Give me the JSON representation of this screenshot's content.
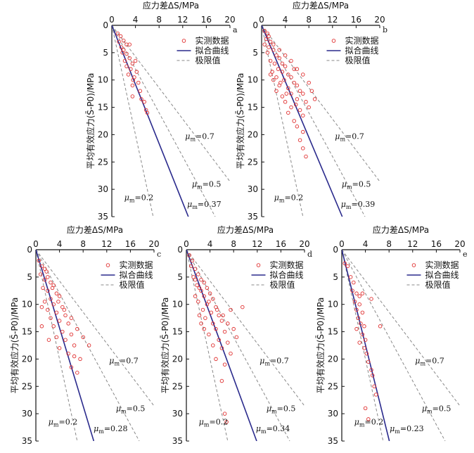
{
  "chart_data": [
    {
      "panel": "a",
      "type": "scatter",
      "title": "应力差ΔS/MPa",
      "xlabel": "应力差ΔS/MPa",
      "ylabel": "平均有效应力(S̄-P0)/MPa",
      "xlim": [
        0,
        20
      ],
      "ylim": [
        0,
        35
      ],
      "y_inverted": true,
      "x_axis_position": "top",
      "xticks": [
        0,
        4,
        8,
        12,
        16,
        20
      ],
      "yticks": [
        0,
        5,
        10,
        15,
        20,
        25,
        30,
        35
      ],
      "legend": {
        "position": "top-right",
        "entries": [
          "实测数据",
          "拟合曲线",
          "极限值"
        ]
      },
      "points_series_name": "实测数据",
      "points": [
        [
          1.0,
          1.5
        ],
        [
          1.5,
          2.0
        ],
        [
          2.0,
          2.8
        ],
        [
          2.5,
          3.5
        ],
        [
          3.0,
          3.5
        ],
        [
          1.2,
          3.0
        ],
        [
          2.0,
          4.5
        ],
        [
          1.8,
          5.0
        ],
        [
          2.5,
          5.2
        ],
        [
          3.0,
          6.0
        ],
        [
          3.5,
          7.0
        ],
        [
          4.0,
          6.5
        ],
        [
          2.5,
          7.5
        ],
        [
          3.2,
          8.0
        ],
        [
          4.2,
          8.5
        ],
        [
          3.8,
          9.5
        ],
        [
          2.8,
          9.0
        ],
        [
          4.5,
          10.5
        ],
        [
          3.5,
          11.0
        ],
        [
          4.8,
          12.0
        ],
        [
          5.0,
          13.5
        ],
        [
          3.5,
          13.0
        ],
        [
          5.5,
          14.0
        ],
        [
          5.8,
          15.5
        ],
        [
          6.0,
          16.0
        ],
        [
          2.2,
          6.5
        ],
        [
          1.6,
          4.0
        ],
        [
          3.6,
          10.0
        ]
      ],
      "fit": {
        "label": "μm=0.37",
        "slope": 0.37
      },
      "limits": [
        {
          "label": "μm=0.2",
          "slope": 0.2
        },
        {
          "label": "μm=0.5",
          "slope": 0.5
        },
        {
          "label": "μm=0.7",
          "slope": 0.7
        }
      ]
    },
    {
      "panel": "b",
      "type": "scatter",
      "title": "应力差ΔS/MPa",
      "xlabel": "应力差ΔS/MPa",
      "ylabel": "平均有效应力(S̄-P0)/MPa",
      "xlim": [
        0,
        20
      ],
      "ylim": [
        0,
        35
      ],
      "y_inverted": true,
      "x_axis_position": "top",
      "xticks": [
        0,
        4,
        8,
        12,
        16,
        20
      ],
      "yticks": [
        0,
        5,
        10,
        15,
        20,
        25,
        30,
        35
      ],
      "legend": {
        "position": "top-right",
        "entries": [
          "实测数据",
          "拟合曲线",
          "极限值"
        ]
      },
      "points_series_name": "实测数据",
      "points": [
        [
          0.5,
          1.0
        ],
        [
          1.0,
          1.5
        ],
        [
          0.8,
          2.5
        ],
        [
          1.5,
          3.0
        ],
        [
          0.5,
          3.5
        ],
        [
          1.2,
          4.0
        ],
        [
          2.0,
          4.5
        ],
        [
          1.0,
          5.0
        ],
        [
          2.5,
          5.5
        ],
        [
          3.0,
          6.0
        ],
        [
          1.5,
          6.5
        ],
        [
          2.2,
          7.0
        ],
        [
          3.5,
          7.0
        ],
        [
          4.0,
          7.5
        ],
        [
          2.8,
          8.0
        ],
        [
          1.8,
          8.5
        ],
        [
          3.5,
          8.5
        ],
        [
          4.5,
          9.0
        ],
        [
          5.0,
          9.5
        ],
        [
          2.5,
          9.5
        ],
        [
          3.8,
          10.0
        ],
        [
          5.5,
          10.5
        ],
        [
          6.0,
          11.0
        ],
        [
          3.0,
          11.0
        ],
        [
          4.5,
          11.5
        ],
        [
          6.5,
          12.0
        ],
        [
          2.5,
          12.0
        ],
        [
          5.0,
          12.5
        ],
        [
          7.0,
          12.5
        ],
        [
          3.5,
          13.0
        ],
        [
          6.0,
          13.5
        ],
        [
          4.0,
          14.0
        ],
        [
          7.5,
          14.0
        ],
        [
          5.0,
          15.0
        ],
        [
          6.5,
          15.5
        ],
        [
          4.5,
          16.0
        ],
        [
          7.0,
          16.5
        ],
        [
          5.5,
          17.5
        ],
        [
          6.0,
          18.5
        ],
        [
          7.0,
          19.5
        ],
        [
          6.5,
          21.0
        ],
        [
          7.0,
          22.5
        ],
        [
          7.5,
          24.0
        ],
        [
          1.2,
          2.0
        ],
        [
          2.0,
          3.5
        ],
        [
          3.0,
          4.5
        ],
        [
          4.0,
          5.5
        ],
        [
          5.0,
          6.5
        ],
        [
          6.0,
          8.0
        ],
        [
          7.0,
          9.0
        ],
        [
          8.0,
          10.5
        ],
        [
          8.5,
          12.0
        ],
        [
          9.0,
          13.5
        ],
        [
          5.5,
          8.0
        ],
        [
          4.2,
          12.5
        ],
        [
          3.2,
          10.5
        ],
        [
          2.0,
          10.0
        ],
        [
          1.5,
          9.0
        ],
        [
          5.8,
          14.5
        ],
        [
          8.0,
          15.0
        ]
      ],
      "fit": {
        "label": "μm=0.39",
        "slope": 0.39
      },
      "limits": [
        {
          "label": "μm=0.2",
          "slope": 0.2
        },
        {
          "label": "μm=0.5",
          "slope": 0.5
        },
        {
          "label": "μm=0.7",
          "slope": 0.7
        }
      ]
    },
    {
      "panel": "c",
      "type": "scatter",
      "title": "应力差ΔS/MPa",
      "xlabel": "应力差ΔS/MPa",
      "ylabel": "平均有效应力(S̄-P0)/MPa",
      "xlim": [
        0,
        20
      ],
      "ylim": [
        0,
        35
      ],
      "y_inverted": true,
      "x_axis_position": "top",
      "xticks": [
        0,
        4,
        8,
        12,
        16,
        20
      ],
      "yticks": [
        0,
        5,
        10,
        15,
        20,
        25,
        30,
        35
      ],
      "legend": {
        "position": "top-right",
        "entries": [
          "实测数据",
          "拟合曲线",
          "极限值"
        ]
      },
      "points_series_name": "实测数据",
      "points": [
        [
          0.5,
          2.0
        ],
        [
          1.0,
          3.0
        ],
        [
          1.5,
          3.5
        ],
        [
          0.8,
          4.5
        ],
        [
          2.0,
          5.0
        ],
        [
          1.5,
          5.5
        ],
        [
          2.5,
          6.0
        ],
        [
          3.0,
          6.5
        ],
        [
          1.2,
          7.0
        ],
        [
          2.0,
          7.5
        ],
        [
          3.5,
          8.0
        ],
        [
          4.0,
          8.5
        ],
        [
          2.5,
          9.0
        ],
        [
          1.5,
          9.5
        ],
        [
          3.0,
          10.0
        ],
        [
          4.5,
          10.5
        ],
        [
          2.0,
          11.0
        ],
        [
          3.5,
          11.5
        ],
        [
          5.0,
          12.0
        ],
        [
          2.5,
          12.5
        ],
        [
          4.0,
          13.0
        ],
        [
          5.5,
          13.5
        ],
        [
          3.0,
          14.0
        ],
        [
          1.0,
          14.0
        ],
        [
          4.5,
          15.0
        ],
        [
          6.0,
          15.5
        ],
        [
          3.5,
          16.0
        ],
        [
          5.0,
          16.5
        ],
        [
          6.5,
          17.5
        ],
        [
          4.0,
          18.0
        ],
        [
          5.5,
          19.0
        ],
        [
          7.5,
          20.0
        ],
        [
          6.0,
          21.5
        ],
        [
          7.0,
          22.5
        ],
        [
          1.8,
          4.0
        ],
        [
          2.8,
          7.0
        ],
        [
          3.8,
          9.5
        ],
        [
          4.8,
          11.0
        ],
        [
          6.0,
          12.5
        ],
        [
          7.0,
          14.5
        ],
        [
          8.0,
          16.0
        ],
        [
          9.0,
          17.5
        ],
        [
          1.0,
          10.5
        ],
        [
          2.2,
          16.5
        ],
        [
          6.5,
          19.5
        ]
      ],
      "fit": {
        "label": "μm=0.28",
        "slope": 0.28
      },
      "limits": [
        {
          "label": "μm=0.2",
          "slope": 0.2
        },
        {
          "label": "μm=0.5",
          "slope": 0.5
        },
        {
          "label": "μm=0.7",
          "slope": 0.7
        }
      ]
    },
    {
      "panel": "d",
      "type": "scatter",
      "title": "应力差ΔS/MPa",
      "xlabel": "应力差ΔS/MPa",
      "ylabel": "平均有效应力(S̄-P0)/MPa",
      "xlim": [
        0,
        20
      ],
      "ylim": [
        0,
        35
      ],
      "y_inverted": true,
      "x_axis_position": "top",
      "xticks": [
        0,
        4,
        8,
        12,
        16,
        20
      ],
      "yticks": [
        0,
        5,
        10,
        15,
        20,
        25,
        30,
        35
      ],
      "legend": {
        "position": "top-right",
        "entries": [
          "实测数据",
          "拟合曲线",
          "极限值"
        ]
      },
      "points_series_name": "实测数据",
      "points": [
        [
          0.5,
          1.0
        ],
        [
          1.0,
          2.0
        ],
        [
          0.8,
          3.0
        ],
        [
          1.5,
          3.5
        ],
        [
          2.0,
          4.5
        ],
        [
          1.2,
          5.0
        ],
        [
          2.5,
          5.5
        ],
        [
          3.0,
          6.0
        ],
        [
          1.8,
          6.5
        ],
        [
          3.5,
          7.0
        ],
        [
          2.5,
          7.5
        ],
        [
          4.0,
          8.0
        ],
        [
          3.0,
          8.5
        ],
        [
          1.5,
          8.5
        ],
        [
          4.5,
          9.0
        ],
        [
          2.0,
          9.5
        ],
        [
          3.5,
          10.0
        ],
        [
          5.0,
          10.5
        ],
        [
          2.8,
          11.0
        ],
        [
          4.2,
          11.5
        ],
        [
          5.5,
          12.0
        ],
        [
          3.2,
          12.5
        ],
        [
          6.0,
          13.0
        ],
        [
          4.5,
          13.5
        ],
        [
          2.5,
          13.5
        ],
        [
          5.0,
          14.5
        ],
        [
          6.5,
          15.0
        ],
        [
          3.8,
          15.5
        ],
        [
          5.5,
          16.5
        ],
        [
          7.0,
          17.0
        ],
        [
          4.5,
          17.5
        ],
        [
          6.0,
          18.0
        ],
        [
          7.5,
          19.0
        ],
        [
          5.0,
          20.0
        ],
        [
          6.5,
          21.0
        ],
        [
          6.0,
          24.0
        ],
        [
          6.5,
          30.0
        ],
        [
          6.8,
          31.5
        ],
        [
          1.5,
          5.5
        ],
        [
          2.2,
          7.0
        ],
        [
          3.8,
          9.5
        ],
        [
          5.2,
          11.0
        ],
        [
          6.2,
          12.0
        ],
        [
          7.0,
          13.5
        ],
        [
          7.5,
          11.0
        ],
        [
          8.0,
          14.5
        ],
        [
          8.5,
          16.0
        ],
        [
          9.5,
          10.5
        ],
        [
          2.2,
          12.0
        ],
        [
          3.0,
          14.5
        ]
      ],
      "fit": {
        "label": "μm=0.34",
        "slope": 0.34
      },
      "limits": [
        {
          "label": "μm=0.2",
          "slope": 0.2
        },
        {
          "label": "μm=0.5",
          "slope": 0.5
        },
        {
          "label": "μm=0.7",
          "slope": 0.7
        }
      ]
    },
    {
      "panel": "e",
      "type": "scatter",
      "title": "应力差ΔS/MPa",
      "xlabel": "应力差ΔS/MPa",
      "ylabel": "平均有效应力(S̄-P0)/MPa",
      "xlim": [
        0,
        20
      ],
      "ylim": [
        0,
        35
      ],
      "y_inverted": true,
      "x_axis_position": "top",
      "xticks": [
        0,
        4,
        8,
        12,
        16,
        20
      ],
      "yticks": [
        0,
        5,
        10,
        15,
        20,
        25,
        30,
        35
      ],
      "legend": {
        "position": "top-right",
        "entries": [
          "实测数据",
          "拟合曲线",
          "极限值"
        ]
      },
      "points_series_name": "实测数据",
      "points": [
        [
          0.5,
          2.5
        ],
        [
          1.0,
          3.0
        ],
        [
          1.5,
          5.0
        ],
        [
          2.0,
          6.0
        ],
        [
          1.8,
          7.5
        ],
        [
          2.5,
          8.0
        ],
        [
          3.0,
          8.5
        ],
        [
          3.5,
          8.0
        ],
        [
          2.2,
          9.5
        ],
        [
          3.0,
          10.0
        ],
        [
          2.5,
          11.0
        ],
        [
          3.5,
          11.5
        ],
        [
          2.8,
          12.5
        ],
        [
          3.2,
          13.5
        ],
        [
          3.8,
          14.0
        ],
        [
          2.5,
          14.5
        ],
        [
          3.5,
          15.5
        ],
        [
          4.0,
          16.5
        ],
        [
          3.0,
          17.0
        ],
        [
          3.8,
          18.0
        ],
        [
          4.2,
          19.0
        ],
        [
          4.5,
          20.5
        ],
        [
          5.0,
          22.0
        ],
        [
          5.2,
          23.0
        ],
        [
          5.5,
          25.0
        ],
        [
          5.8,
          26.5
        ],
        [
          4.0,
          29.0
        ],
        [
          4.5,
          31.0
        ],
        [
          6.5,
          14.0
        ],
        [
          5.0,
          9.0
        ]
      ],
      "fit": {
        "label": "μm=0.23",
        "slope": 0.23
      },
      "limits": [
        {
          "label": "μm=0.2",
          "slope": 0.2
        },
        {
          "label": "μm=0.5",
          "slope": 0.5
        },
        {
          "label": "μm=0.7",
          "slope": 0.7
        }
      ]
    }
  ],
  "colors": {
    "points": "#e03030",
    "fit": "#2a2a8c",
    "limits": "#888888",
    "axis": "#111111"
  }
}
